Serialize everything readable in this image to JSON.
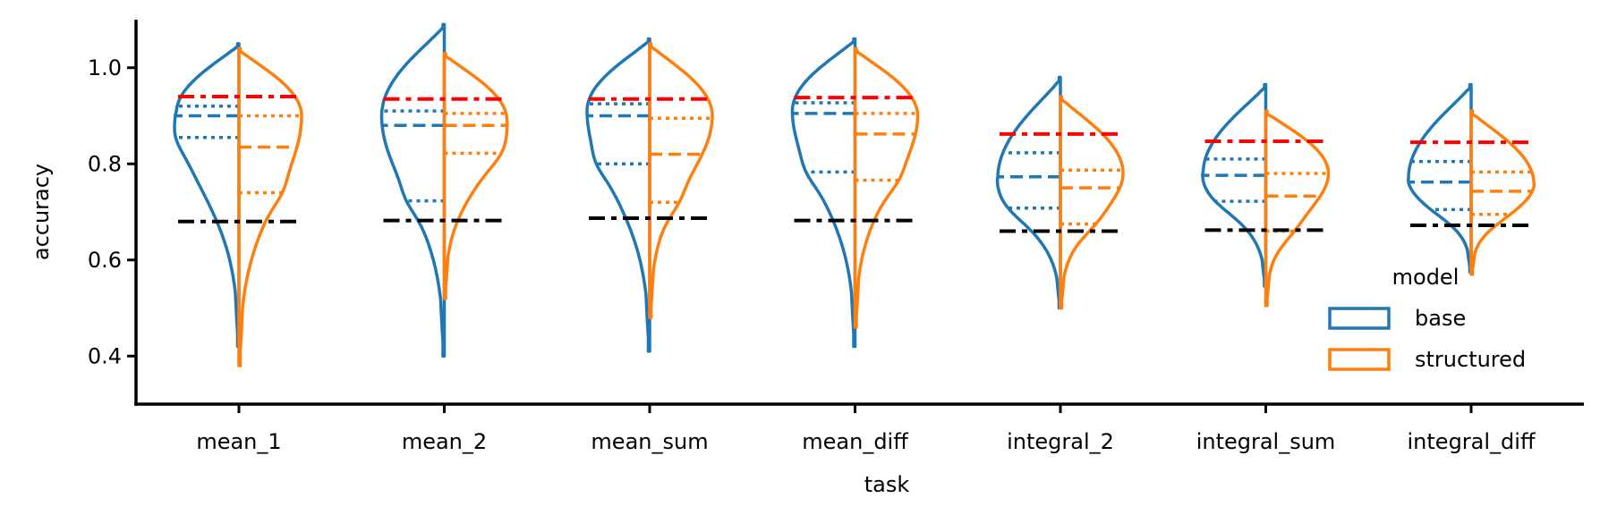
{
  "chart_data": {
    "type": "violin",
    "split": true,
    "xlabel": "task",
    "ylabel": "accuracy",
    "ylim": [
      0.3,
      1.1
    ],
    "yticks": [
      0.4,
      0.6,
      0.8,
      1.0
    ],
    "ytick_labels": [
      "0.4",
      "0.6",
      "0.8",
      "1.0"
    ],
    "categories": [
      "mean_1",
      "mean_2",
      "mean_sum",
      "mean_diff",
      "integral_2",
      "integral_sum",
      "integral_diff"
    ],
    "grid": false,
    "legend": {
      "title": "model",
      "placement": "lower-right",
      "entries": [
        {
          "label": "base",
          "color": "#1f77b4"
        },
        {
          "label": "structured",
          "color": "#ff7f0e"
        }
      ]
    },
    "reference_lines": [
      {
        "color": "#ff0000",
        "values": [
          0.94,
          0.935,
          0.935,
          0.938,
          0.862,
          0.847,
          0.845
        ]
      },
      {
        "color": "#000000",
        "values": [
          0.68,
          0.682,
          0.687,
          0.682,
          0.66,
          0.662,
          0.672
        ]
      }
    ],
    "series": [
      {
        "name": "base",
        "color": "#1f77b4",
        "side": "left",
        "min": [
          0.42,
          0.4,
          0.41,
          0.42,
          0.5,
          0.545,
          0.575
        ],
        "max": [
          1.05,
          1.09,
          1.06,
          1.06,
          0.98,
          0.965,
          0.965
        ],
        "mode": [
          0.905,
          0.9,
          0.91,
          0.91,
          0.77,
          0.78,
          0.77
        ],
        "q1": [
          0.855,
          0.723,
          0.8,
          0.783,
          0.708,
          0.722,
          0.705
        ],
        "median": [
          0.9,
          0.88,
          0.9,
          0.905,
          0.773,
          0.776,
          0.762
        ],
        "q3": [
          0.92,
          0.91,
          0.925,
          0.927,
          0.823,
          0.81,
          0.805
        ]
      },
      {
        "name": "structured",
        "color": "#ff7f0e",
        "side": "right",
        "min": [
          0.38,
          0.52,
          0.48,
          0.46,
          0.5,
          0.505,
          0.57
        ],
        "max": [
          1.04,
          1.03,
          1.05,
          1.04,
          0.94,
          0.91,
          0.91
        ],
        "mode": [
          0.9,
          0.89,
          0.9,
          0.9,
          0.78,
          0.78,
          0.76
        ],
        "q1": [
          0.74,
          0.822,
          0.72,
          0.766,
          0.675,
          0.66,
          0.695
        ],
        "median": [
          0.835,
          0.88,
          0.82,
          0.862,
          0.75,
          0.733,
          0.743
        ],
        "q3": [
          0.9,
          0.905,
          0.895,
          0.905,
          0.787,
          0.78,
          0.783
        ]
      }
    ]
  }
}
